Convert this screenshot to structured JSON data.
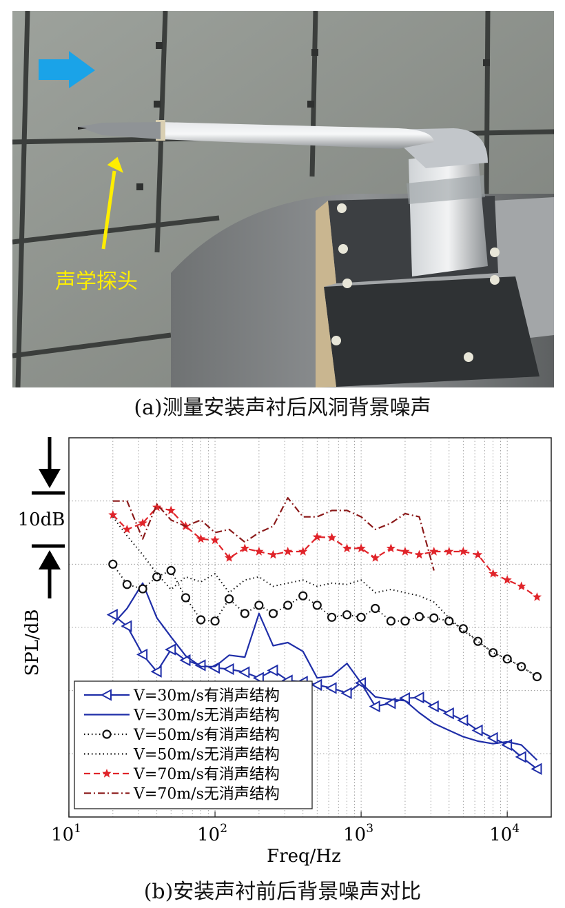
{
  "photo": {
    "probe_label": "声学探头",
    "flow_arrow_color": "#1aa3e8",
    "probe_arrow_color": "#ffee00"
  },
  "caption_a": "(a)测量安装声衬后风洞背景噪声",
  "caption_b": "(b)安装声衬前后背景噪声对比",
  "scale_bar": {
    "label": "10dB",
    "value_db": 10
  },
  "chart_data": {
    "type": "line",
    "xscale": "log",
    "xlabel": "Freq/Hz",
    "ylabel": "SPL/dB",
    "xlim": [
      10,
      20000
    ],
    "ylim": [
      0,
      60
    ],
    "xticks": [
      10,
      100,
      1000,
      10000
    ],
    "xtick_labels": [
      {
        "base": "10",
        "exp": "1"
      },
      {
        "base": "10",
        "exp": "2"
      },
      {
        "base": "10",
        "exp": "3"
      },
      {
        "base": "10",
        "exp": "4"
      }
    ],
    "yticks": [
      0,
      10,
      20,
      30,
      40,
      50,
      60
    ],
    "grid": true,
    "legend_position": "bottom-left",
    "series": [
      {
        "name": "V=30m/s有消声结构",
        "color": "#1f2ea8",
        "dash": "solid",
        "marker": "triangle-left",
        "x": [
          20,
          25,
          32,
          40,
          50,
          63,
          80,
          100,
          125,
          160,
          200,
          250,
          315,
          400,
          500,
          630,
          800,
          1000,
          1250,
          1600,
          2000,
          2500,
          3150,
          4000,
          5000,
          6300,
          8000,
          10000,
          12500,
          16000
        ],
        "y": [
          32.0,
          30.2,
          25.7,
          23.0,
          26.5,
          24.8,
          24.0,
          23.6,
          23.4,
          22.9,
          22.0,
          23.2,
          21.6,
          21.4,
          20.9,
          20.4,
          19.6,
          21.2,
          17.5,
          18.0,
          18.8,
          18.9,
          17.5,
          16.4,
          15.3,
          13.7,
          12.5,
          11.4,
          9.5,
          7.6
        ]
      },
      {
        "name": "V=30m/s无消声结构",
        "color": "#1f2ea8",
        "dash": "solid",
        "marker": "none",
        "x": [
          20,
          25,
          32,
          40,
          50,
          63,
          80,
          100,
          125,
          160,
          200,
          250,
          315,
          400,
          500,
          630,
          800,
          1000,
          1250,
          1600,
          2000,
          2500,
          3150,
          4000,
          5000,
          6300,
          8000,
          10000,
          12500,
          16000
        ],
        "y": [
          30.5,
          33.0,
          37.0,
          31.5,
          28.5,
          25.5,
          23.8,
          23.8,
          25.6,
          25.3,
          32.2,
          27.1,
          27.6,
          26.2,
          22.0,
          22.3,
          24.3,
          21.2,
          19.0,
          18.6,
          18.4,
          16.5,
          14.8,
          13.7,
          12.7,
          12.0,
          11.6,
          11.9,
          11.4,
          9.0
        ]
      },
      {
        "name": "V=50m/s有消声结构",
        "color": "#111111",
        "dash": "dotted",
        "marker": "circle",
        "x": [
          20,
          25,
          32,
          40,
          50,
          63,
          80,
          100,
          125,
          160,
          200,
          250,
          315,
          400,
          500,
          630,
          800,
          1000,
          1250,
          1600,
          2000,
          2500,
          3150,
          4000,
          5000,
          6300,
          8000,
          10000,
          12500,
          16000
        ],
        "y": [
          40.0,
          36.8,
          36.1,
          38.0,
          39.0,
          34.7,
          31.2,
          31.0,
          34.5,
          32.2,
          33.5,
          32.2,
          33.5,
          35.0,
          33.5,
          31.6,
          32.0,
          31.6,
          33.0,
          31.0,
          31.0,
          31.7,
          31.5,
          31.0,
          29.8,
          27.8,
          26.0,
          25.0,
          23.8,
          22.2
        ]
      },
      {
        "name": "V=50m/s无消声结构",
        "color": "#111111",
        "dash": "dotted",
        "marker": "none",
        "x": [
          20,
          25,
          32,
          40,
          50,
          63,
          80,
          100,
          125,
          160,
          200,
          250,
          315,
          400,
          500,
          630,
          800,
          1000,
          1250,
          1600,
          2000,
          2500,
          3150,
          4000,
          5000,
          6300,
          8000,
          10000,
          12500,
          16000
        ],
        "y": [
          47.5,
          44.5,
          41.5,
          38.5,
          36.0,
          38.0,
          37.2,
          38.5,
          35.5,
          37.5,
          38.0,
          36.5,
          37.0,
          37.5,
          36.5,
          37.0,
          36.8,
          37.5,
          35.5,
          36.0,
          35.5,
          35.0,
          34.0,
          31.5,
          29.5,
          27.8,
          26.0,
          25.0,
          23.8,
          22.2
        ]
      },
      {
        "name": "V=70m/s有消声结构",
        "color": "#e0242a",
        "dash": "dashed",
        "marker": "star",
        "x": [
          20,
          25,
          32,
          40,
          50,
          63,
          80,
          100,
          125,
          160,
          200,
          250,
          315,
          400,
          500,
          630,
          800,
          1000,
          1250,
          1600,
          2000,
          2500,
          3150,
          4000,
          5000,
          6300,
          8000,
          10000,
          12500,
          16000
        ],
        "y": [
          47.8,
          45.5,
          46.5,
          49.0,
          48.5,
          46.0,
          44.0,
          43.8,
          41.0,
          42.5,
          42.0,
          41.5,
          42.0,
          42.0,
          44.3,
          44.2,
          42.5,
          42.5,
          41.0,
          42.5,
          42.0,
          41.5,
          42.0,
          42.0,
          42.0,
          41.5,
          38.5,
          37.5,
          36.5,
          34.8
        ]
      },
      {
        "name": "V=70m/s无消声结构",
        "color": "#8b1a1a",
        "dash": "dashdot",
        "marker": "none",
        "x": [
          20,
          25,
          32,
          40,
          50,
          63,
          80,
          100,
          125,
          160,
          200,
          250,
          315,
          400,
          500,
          630,
          800,
          1000,
          1250,
          1600,
          2000,
          2500,
          3150
        ],
        "y": [
          50.0,
          50.0,
          44.0,
          49.5,
          47.0,
          46.0,
          47.0,
          45.0,
          45.5,
          43.5,
          45.0,
          46.0,
          50.5,
          47.5,
          47.5,
          48.5,
          48.5,
          47.5,
          45.5,
          46.5,
          48.0,
          47.5,
          39.0
        ]
      }
    ]
  }
}
